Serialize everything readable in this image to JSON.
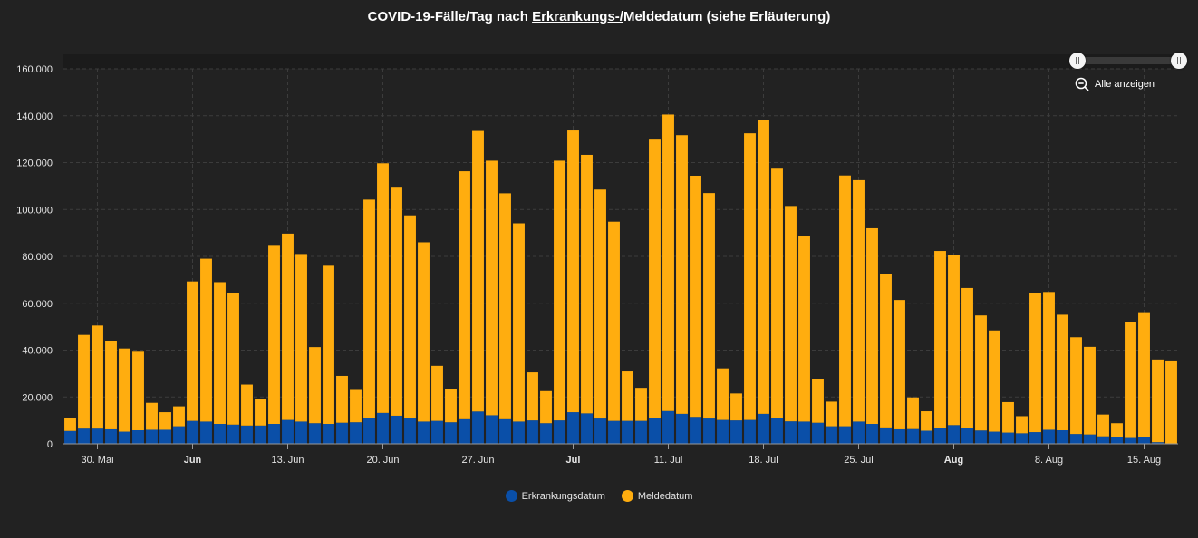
{
  "title": {
    "prefix": "COVID-19-Fälle/Tag nach ",
    "underlined": "Erkrankungs-/",
    "suffix": "Meldedatum (siehe Erläuterung)"
  },
  "zoom": {
    "label": "Alle anzeigen"
  },
  "colors": {
    "erkrankung": "#0a4fa8",
    "melde": "#ffad0f",
    "grid": "#3c3c3c"
  },
  "chart_data": {
    "type": "bar",
    "stacked": true,
    "ylim": [
      0,
      160000
    ],
    "y_ticks": [
      {
        "value": 0,
        "label": "0"
      },
      {
        "value": 20000,
        "label": "20.000"
      },
      {
        "value": 40000,
        "label": "40.000"
      },
      {
        "value": 60000,
        "label": "60.000"
      },
      {
        "value": 80000,
        "label": "80.000"
      },
      {
        "value": 100000,
        "label": "100.000"
      },
      {
        "value": 120000,
        "label": "120.000"
      },
      {
        "value": 140000,
        "label": "140.000"
      },
      {
        "value": 160000,
        "label": "160.000"
      }
    ],
    "x_ticks": [
      {
        "index": 2,
        "label": "30. Mai",
        "bold": false
      },
      {
        "index": 9,
        "label": "Jun",
        "bold": true
      },
      {
        "index": 16,
        "label": "13. Jun",
        "bold": false
      },
      {
        "index": 23,
        "label": "20. Jun",
        "bold": false
      },
      {
        "index": 30,
        "label": "27. Jun",
        "bold": false
      },
      {
        "index": 37,
        "label": "Jul",
        "bold": true
      },
      {
        "index": 44,
        "label": "11. Jul",
        "bold": false
      },
      {
        "index": 51,
        "label": "18. Jul",
        "bold": false
      },
      {
        "index": 58,
        "label": "25. Jul",
        "bold": false
      },
      {
        "index": 65,
        "label": "Aug",
        "bold": true
      },
      {
        "index": 72,
        "label": "8. Aug",
        "bold": false
      },
      {
        "index": 79,
        "label": "15. Aug",
        "bold": false
      }
    ],
    "legend_position": "bottom",
    "grid": true,
    "series": [
      {
        "name": "Erkrankungsdatum",
        "color": "#0a4fa8",
        "values": [
          5500,
          6500,
          6500,
          6200,
          5200,
          5800,
          6000,
          6000,
          7500,
          9800,
          9500,
          8500,
          8200,
          7800,
          7800,
          8500,
          10200,
          9500,
          8800,
          8500,
          9000,
          9200,
          11000,
          13200,
          12000,
          11200,
          9500,
          9800,
          9200,
          10500,
          13800,
          12200,
          10500,
          9500,
          10000,
          8800,
          10000,
          13500,
          13000,
          10800,
          9800,
          9800,
          9800,
          11000,
          14000,
          12800,
          11500,
          10800,
          10200,
          10000,
          10200,
          12800,
          11200,
          9600,
          9500,
          9000,
          7500,
          7500,
          9500,
          8500,
          7000,
          6200,
          6300,
          5600,
          6800,
          8000,
          6800,
          5700,
          5200,
          4800,
          4500,
          5000,
          6000,
          5800,
          4200,
          4000,
          3200,
          2800,
          2500,
          2800,
          700,
          200
        ]
      },
      {
        "name": "Meldedatum",
        "color": "#ffad0f",
        "values": [
          5500,
          40000,
          44000,
          37500,
          35500,
          33500,
          11500,
          7500,
          8500,
          59500,
          69500,
          60500,
          56000,
          17500,
          11500,
          76000,
          79500,
          71500,
          32500,
          67500,
          20000,
          13800,
          93200,
          106500,
          97300,
          86300,
          76500,
          23500,
          14000,
          105800,
          119700,
          108600,
          96400,
          84600,
          20500,
          13700,
          110800,
          120200,
          110300,
          97700,
          85000,
          21100,
          14100,
          118800,
          126500,
          118900,
          102900,
          96200,
          22000,
          11500,
          122300,
          125400,
          106200,
          91900,
          79000,
          18500,
          10500,
          107000,
          103000,
          83500,
          65500,
          55200,
          13500,
          8300,
          75500,
          72700,
          59700,
          49100,
          43200,
          13000,
          7300,
          59500,
          58800,
          49300,
          41300,
          37400,
          9300,
          6000,
          49500,
          53000,
          35300,
          35000
        ]
      }
    ]
  }
}
